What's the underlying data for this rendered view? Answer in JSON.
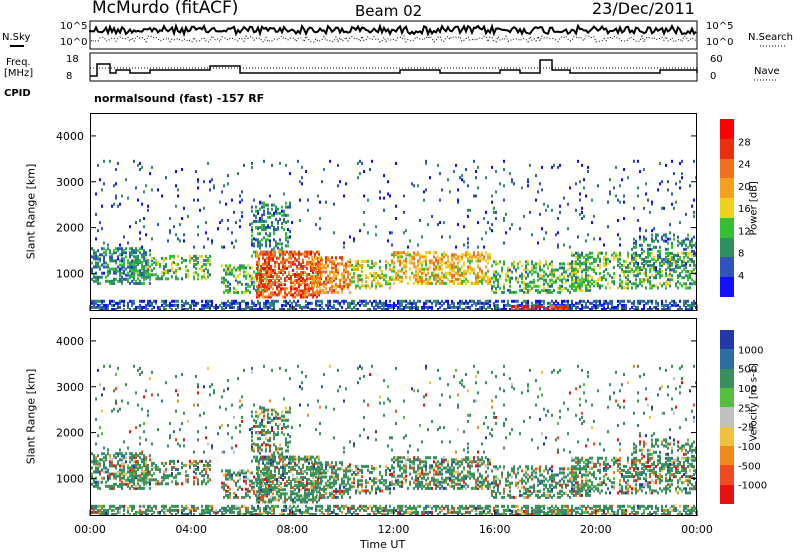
{
  "header": {
    "station": "McMurdo (fitACF)",
    "beam": "Beam 02",
    "date": "23/Dec/2011"
  },
  "top_panel": {
    "left_label_1": "N.Sky",
    "left_label_2": "Freq.",
    "left_label_3": "[MHz]",
    "left_label_4": "CPID",
    "right_label_1": "N.Search",
    "right_label_2": "Nave",
    "noise_ticks_left": [
      "10^5",
      "10^0"
    ],
    "noise_ticks_right": [
      "10^5",
      "10^0"
    ],
    "freq_ticks": [
      "18",
      "8"
    ],
    "nave_ticks": [
      "60",
      "0"
    ],
    "cpid_text": "normalsound (fast) -157 RF"
  },
  "chart_data": [
    {
      "type": "heatmap",
      "title": "Power",
      "ylabel": "Slant Range [km]",
      "ylim": [
        180,
        4500
      ],
      "yticks": [
        1000,
        2000,
        3000,
        4000
      ],
      "xticks": [
        "00:00",
        "04:00",
        "08:00",
        "12:00",
        "16:00",
        "20:00",
        "00:00"
      ],
      "colorbar_label": "Power [dB]",
      "colorbar_ticks": [
        "4",
        "8",
        "12",
        "16",
        "20",
        "24",
        "28"
      ],
      "colorbar_colors": [
        "#1010ff",
        "#2f55b8",
        "#2f8f62",
        "#34c034",
        "#f0d020",
        "#f6a020",
        "#f07020",
        "#e83010",
        "#ff0000"
      ]
    },
    {
      "type": "heatmap",
      "title": "Velocity",
      "ylabel": "Slant Range [km]",
      "ylim": [
        180,
        4500
      ],
      "yticks": [
        1000,
        2000,
        3000,
        4000
      ],
      "xticks": [
        "00:00",
        "04:00",
        "08:00",
        "12:00",
        "16:00",
        "20:00",
        "00:00"
      ],
      "xlabel": "Time UT",
      "colorbar_label": "Velocity [m s-1]",
      "colorbar_ticks": [
        "1000",
        "500",
        "100",
        "25",
        "-25",
        "-100",
        "-500",
        "-1000"
      ],
      "colorbar_colors": [
        "#2238a8",
        "#2c6ea0",
        "#3b8f5c",
        "#55c040",
        "#c0c0c0",
        "#f0c040",
        "#f08a20",
        "#f04a20",
        "#e81010"
      ]
    }
  ]
}
